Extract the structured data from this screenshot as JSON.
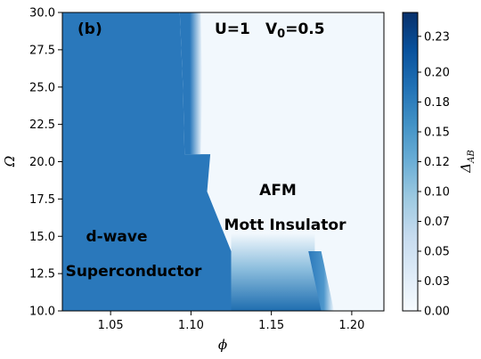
{
  "chart_data": {
    "type": "heatmap",
    "title": "",
    "panel_label": "(b)",
    "parameters": {
      "U_text": "U=1",
      "V_prefix": "V",
      "V_sub": "0",
      "V_value": "=0.5"
    },
    "xlabel": "ϕ",
    "ylabel": "Ω",
    "colorbar_label": "Δ",
    "colorbar_sub": "AB",
    "xlim": [
      1.02,
      1.22
    ],
    "ylim": [
      10.0,
      30.0
    ],
    "clim": [
      0.0,
      0.25
    ],
    "colormap": "Blues",
    "x_ticks": [
      1.05,
      1.1,
      1.15,
      1.2
    ],
    "x_tick_labels": [
      "1.05",
      "1.10",
      "1.15",
      "1.20"
    ],
    "y_ticks": [
      10.0,
      12.5,
      15.0,
      17.5,
      20.0,
      22.5,
      25.0,
      27.5,
      30.0
    ],
    "y_tick_labels": [
      "10.0",
      "12.5",
      "15.0",
      "17.5",
      "20.0",
      "22.5",
      "25.0",
      "27.5",
      "30.0"
    ],
    "cbar_ticks": [
      0.0,
      0.025,
      0.05,
      0.075,
      0.1,
      0.125,
      0.15,
      0.175,
      0.2,
      0.23
    ],
    "cbar_tick_labels": [
      "0.00",
      "0.03",
      "0.05",
      "0.07",
      "0.10",
      "0.12",
      "0.15",
      "0.18",
      "0.20",
      "0.23"
    ],
    "regions": [
      {
        "line1": "d-wave",
        "line2": "Superconductor",
        "phase": "superconductor",
        "value": 0.19
      },
      {
        "line1": "AFM",
        "line2": "Mott Insulator",
        "phase": "afm",
        "value": 0.0
      }
    ],
    "boundary": {
      "upper_edge": [
        [
          1.093,
          30.0
        ],
        [
          1.095,
          25.0
        ],
        [
          1.096,
          20.5
        ]
      ],
      "lower_edge": [
        [
          1.11,
          18.0
        ],
        [
          1.125,
          14.0
        ],
        [
          1.125,
          10.0
        ]
      ],
      "lower_tongue_right": [
        [
          1.177,
          14.0
        ],
        [
          1.185,
          10.0
        ]
      ]
    }
  }
}
